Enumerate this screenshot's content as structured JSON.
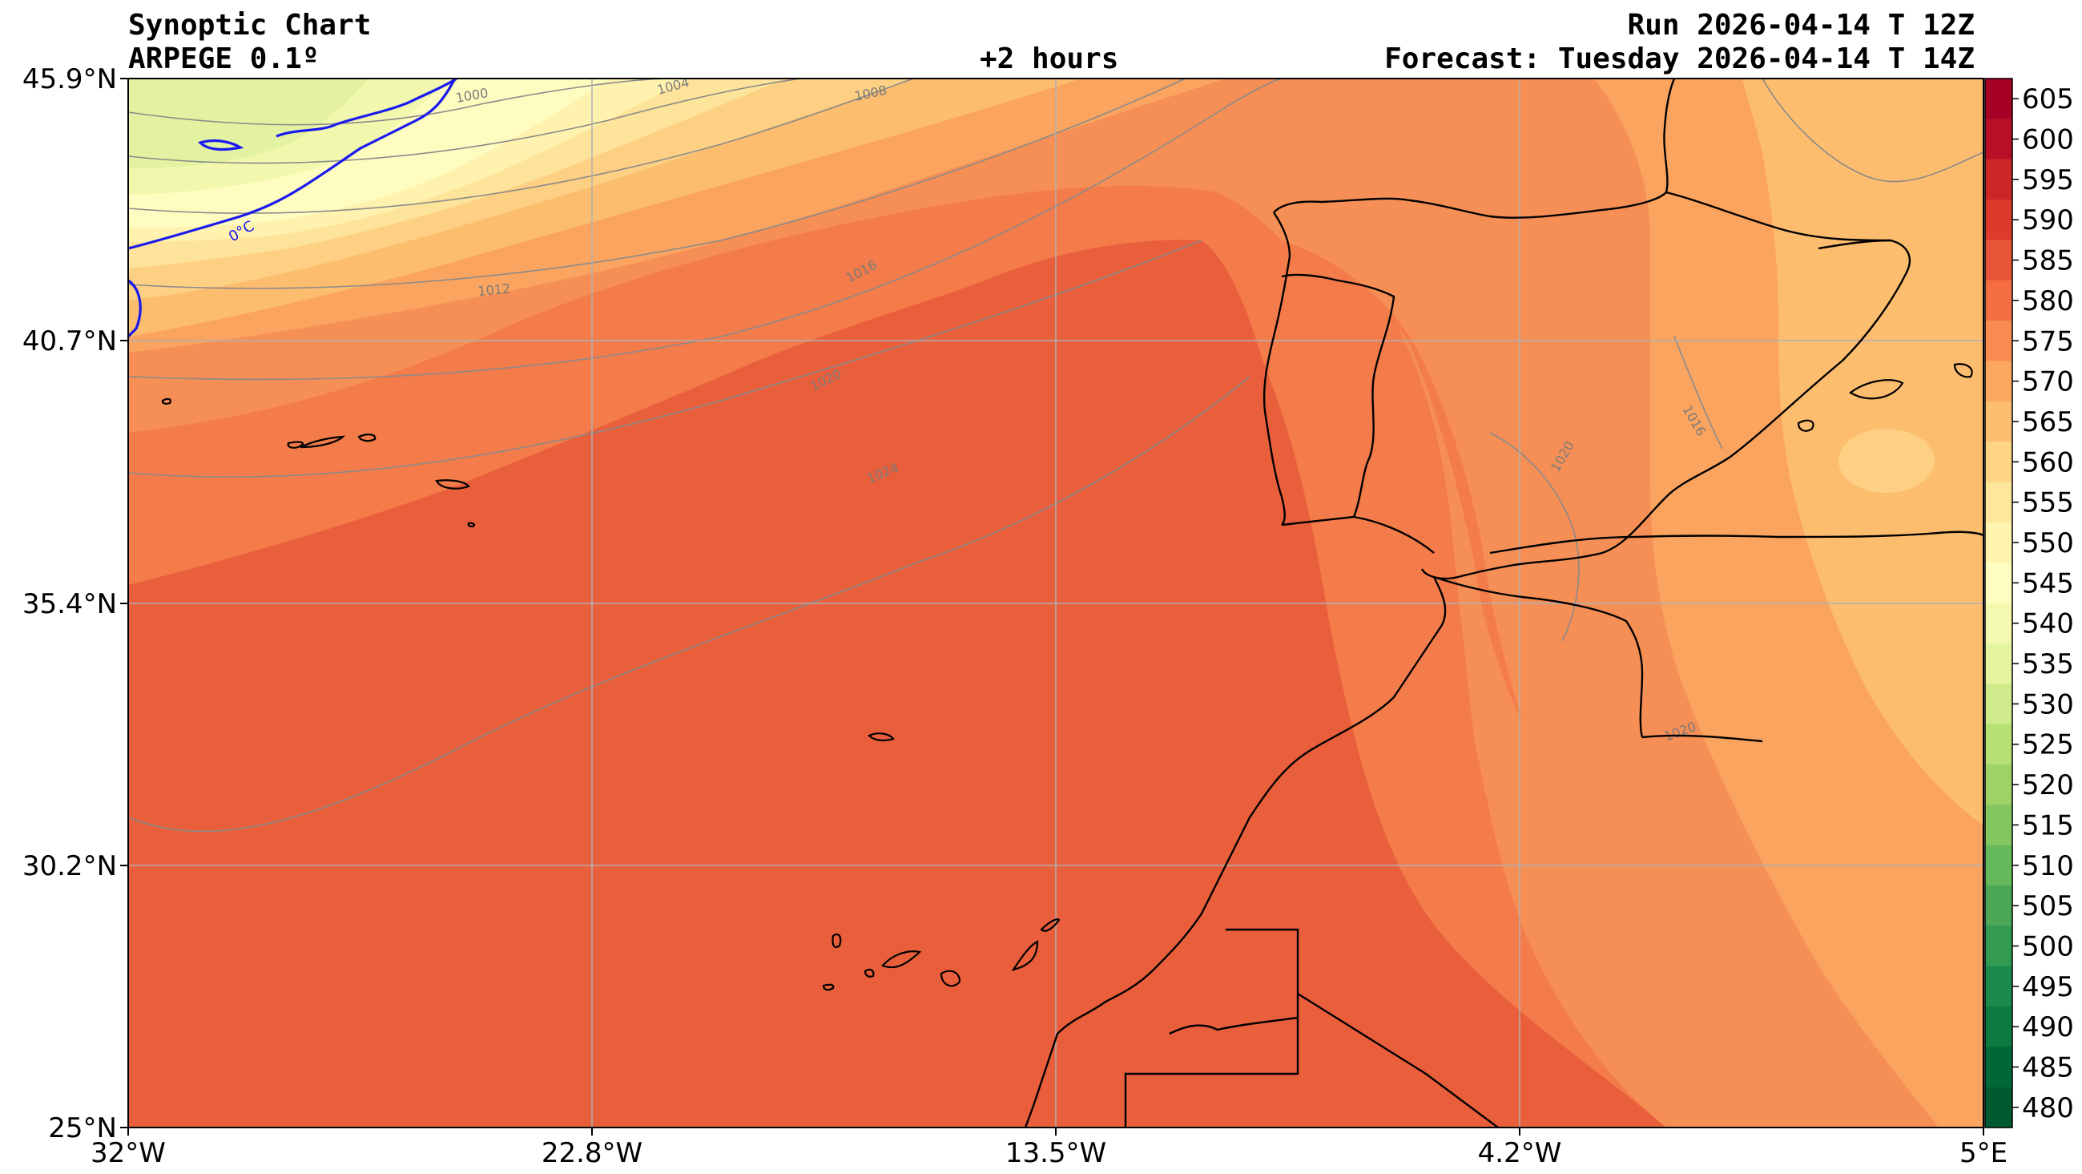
{
  "header": {
    "title": "Synoptic Chart",
    "model": "ARPEGE 0.1º",
    "lead": "+2 hours",
    "run": "Run 2026-04-14 T 12Z",
    "forecast": "Forecast: Tuesday 2026-04-14 T 14Z"
  },
  "map": {
    "lat_labels": [
      "45.9°N",
      "40.7°N",
      "35.4°N",
      "30.2°N",
      "25°N"
    ],
    "lon_labels": [
      "32°W",
      "22.8°W",
      "13.5°W",
      "4.2°W",
      "5°E"
    ],
    "freezing_label": "0°C",
    "isobar_labels": [
      "1000",
      "1004",
      "1008",
      "1012",
      "1016",
      "1020",
      "1024",
      "1016",
      "1020",
      "1020"
    ]
  },
  "colorbar": {
    "levels": [
      "605",
      "600",
      "595",
      "590",
      "585",
      "580",
      "575",
      "570",
      "565",
      "560",
      "555",
      "550",
      "545",
      "540",
      "535",
      "530",
      "525",
      "520",
      "515",
      "510",
      "505",
      "500",
      "495",
      "490",
      "485",
      "480"
    ],
    "colors": [
      "#a50026",
      "#b80f26",
      "#cc2627",
      "#dc3b2c",
      "#e95538",
      "#f46d43",
      "#f78b50",
      "#fba75e",
      "#fdbf6f",
      "#fed485",
      "#fee79b",
      "#fff3ae",
      "#fffec0",
      "#f3faaf",
      "#e4f49f",
      "#d0eb8c",
      "#b7e075",
      "#9ed267",
      "#84c65f",
      "#66b95a",
      "#4ca856",
      "#329a51",
      "#1a8a4b",
      "#0b7a43",
      "#006837",
      "#005a31"
    ]
  }
}
